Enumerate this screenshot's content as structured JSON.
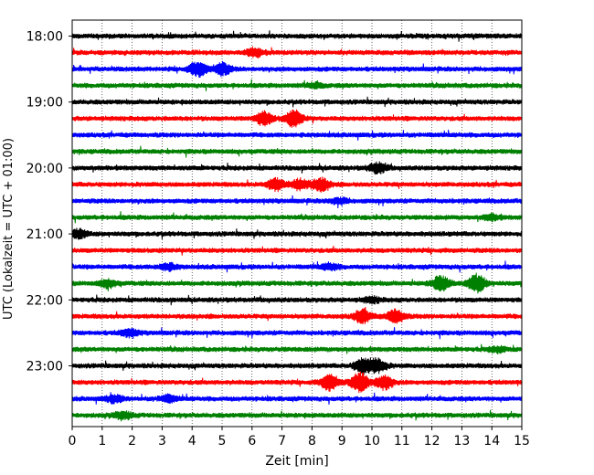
{
  "chart_data": {
    "type": "line",
    "title": "",
    "xlabel": "Zeit  [min]",
    "ylabel": "UTC (Lokalzeit = UTC + 01:00)",
    "xlim": [
      0,
      15
    ],
    "xticks": [
      0,
      1,
      2,
      3,
      4,
      5,
      6,
      7,
      8,
      9,
      10,
      11,
      12,
      13,
      14,
      15
    ],
    "xtick_labels": [
      "0",
      "1",
      "2",
      "3",
      "4",
      "5",
      "6",
      "7",
      "8",
      "9",
      "10",
      "11",
      "12",
      "13",
      "14",
      "15"
    ],
    "ytick_labels": [
      "18:00",
      "19:00",
      "20:00",
      "21:00",
      "22:00",
      "23:00"
    ],
    "ytick_rows": [
      0,
      4,
      8,
      12,
      16,
      20
    ],
    "x_grid": "dotted vertical",
    "trace_colors": [
      "#000000",
      "#ff0000",
      "#0000ff",
      "#008000"
    ],
    "trace_interval_minutes": 15,
    "series": [
      {
        "start": "18:00",
        "events": []
      },
      {
        "start": "18:15",
        "events": [
          {
            "x": 6.1,
            "amp": 0.6
          }
        ]
      },
      {
        "start": "18:30",
        "events": [
          {
            "x": 4.2,
            "amp": 1.0
          },
          {
            "x": 5.0,
            "amp": 0.8
          }
        ]
      },
      {
        "start": "18:45",
        "events": [
          {
            "x": 8.1,
            "amp": 0.3
          }
        ]
      },
      {
        "start": "19:00",
        "events": []
      },
      {
        "start": "19:15",
        "events": [
          {
            "x": 6.4,
            "amp": 0.9
          },
          {
            "x": 7.4,
            "amp": 1.1
          }
        ]
      },
      {
        "start": "19:30",
        "events": []
      },
      {
        "start": "19:45",
        "events": []
      },
      {
        "start": "20:00",
        "events": [
          {
            "x": 10.2,
            "amp": 0.7
          }
        ]
      },
      {
        "start": "20:15",
        "events": [
          {
            "x": 6.8,
            "amp": 0.8
          },
          {
            "x": 7.6,
            "amp": 0.7
          },
          {
            "x": 8.3,
            "amp": 0.9
          }
        ]
      },
      {
        "start": "20:30",
        "events": [
          {
            "x": 8.9,
            "amp": 0.4
          }
        ]
      },
      {
        "start": "20:45",
        "events": [
          {
            "x": 14.0,
            "amp": 0.35
          }
        ]
      },
      {
        "start": "21:00",
        "events": [
          {
            "x": 0.2,
            "amp": 0.6
          }
        ]
      },
      {
        "start": "21:15",
        "events": []
      },
      {
        "start": "21:30",
        "events": [
          {
            "x": 3.2,
            "amp": 0.45
          },
          {
            "x": 8.6,
            "amp": 0.4
          }
        ]
      },
      {
        "start": "21:45",
        "events": [
          {
            "x": 1.2,
            "amp": 0.5
          },
          {
            "x": 12.3,
            "amp": 1.0
          },
          {
            "x": 13.5,
            "amp": 1.2
          }
        ]
      },
      {
        "start": "22:00",
        "events": [
          {
            "x": 10.0,
            "amp": 0.35
          }
        ]
      },
      {
        "start": "22:15",
        "events": [
          {
            "x": 9.7,
            "amp": 0.9
          },
          {
            "x": 10.8,
            "amp": 0.9
          }
        ]
      },
      {
        "start": "22:30",
        "events": [
          {
            "x": 1.9,
            "amp": 0.5
          }
        ]
      },
      {
        "start": "22:45",
        "events": [
          {
            "x": 14.2,
            "amp": 0.35
          }
        ]
      },
      {
        "start": "23:00",
        "events": [
          {
            "x": 9.7,
            "amp": 1.0
          },
          {
            "x": 10.2,
            "amp": 0.9
          }
        ]
      },
      {
        "start": "23:15",
        "events": [
          {
            "x": 8.6,
            "amp": 1.1
          },
          {
            "x": 9.6,
            "amp": 1.3
          },
          {
            "x": 10.4,
            "amp": 1.0
          }
        ]
      },
      {
        "start": "23:30",
        "events": [
          {
            "x": 1.4,
            "amp": 0.45
          },
          {
            "x": 3.2,
            "amp": 0.45
          }
        ]
      },
      {
        "start": "23:45",
        "events": [
          {
            "x": 1.7,
            "amp": 0.5
          }
        ]
      }
    ]
  }
}
